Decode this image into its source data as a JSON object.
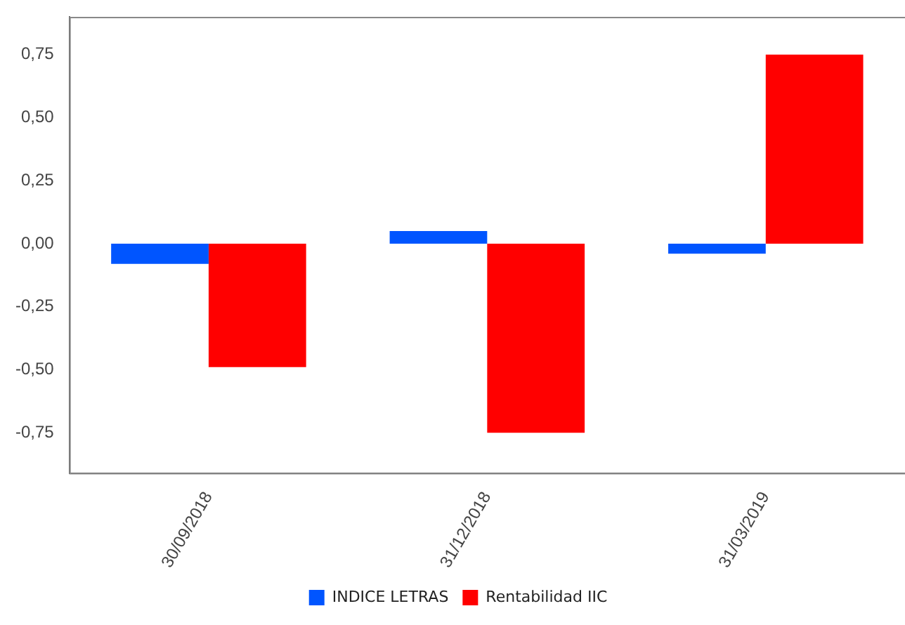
{
  "chart_data": {
    "type": "bar",
    "categories": [
      "30/09/2018",
      "31/12/2018",
      "31/03/2019"
    ],
    "series": [
      {
        "name": "INDICE LETRAS",
        "color": "#0055ff",
        "values": [
          -0.08,
          0.05,
          -0.04
        ]
      },
      {
        "name": "Rentabilidad IIC",
        "color": "#ff0000",
        "values": [
          -0.49,
          -0.75,
          0.75
        ]
      }
    ],
    "ylim": [
      -0.91,
      0.9
    ],
    "yticks": [
      {
        "value": -0.75,
        "label": "-0,75"
      },
      {
        "value": -0.5,
        "label": "-0,50"
      },
      {
        "value": -0.25,
        "label": "-0,25"
      },
      {
        "value": 0,
        "label": "0,00"
      },
      {
        "value": 0.25,
        "label": "0,25"
      },
      {
        "value": 0.5,
        "label": "0,50"
      },
      {
        "value": 0.75,
        "label": "0,75"
      }
    ],
    "grid": false,
    "legend": "bottom"
  }
}
